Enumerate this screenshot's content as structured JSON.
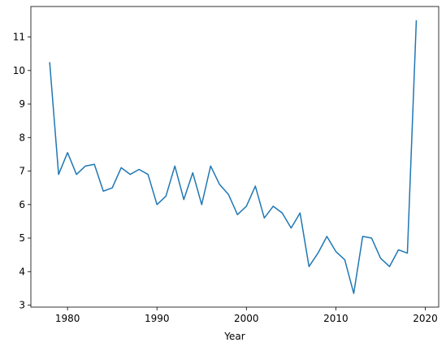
{
  "chart_data": {
    "type": "line",
    "xlabel": "Year",
    "x": [
      1978,
      1979,
      1980,
      1981,
      1982,
      1983,
      1984,
      1985,
      1986,
      1987,
      1988,
      1989,
      1990,
      1991,
      1992,
      1993,
      1994,
      1995,
      1996,
      1997,
      1998,
      1999,
      2000,
      2001,
      2002,
      2003,
      2004,
      2005,
      2006,
      2007,
      2008,
      2009,
      2010,
      2011,
      2012,
      2013,
      2014,
      2015,
      2016,
      2017,
      2018,
      2019
    ],
    "values": [
      10.25,
      6.9,
      7.55,
      6.9,
      7.15,
      7.2,
      6.4,
      6.5,
      7.1,
      6.9,
      7.05,
      6.9,
      6.0,
      6.25,
      7.15,
      6.15,
      6.95,
      6.0,
      7.15,
      6.6,
      6.3,
      5.7,
      5.95,
      6.55,
      5.6,
      5.95,
      5.75,
      5.3,
      5.75,
      4.15,
      4.55,
      5.05,
      4.6,
      4.35,
      3.35,
      5.05,
      5.0,
      4.4,
      4.15,
      4.65,
      4.55,
      11.5
    ],
    "color": "#1f77b4",
    "xlim": [
      1975.9,
      2021.5
    ],
    "xticks": [
      1980,
      1990,
      2000,
      2010,
      2020
    ],
    "ylim": [
      2.94,
      11.91
    ],
    "yticks": [
      3,
      4,
      5,
      6,
      7,
      8,
      9,
      10,
      11
    ]
  }
}
